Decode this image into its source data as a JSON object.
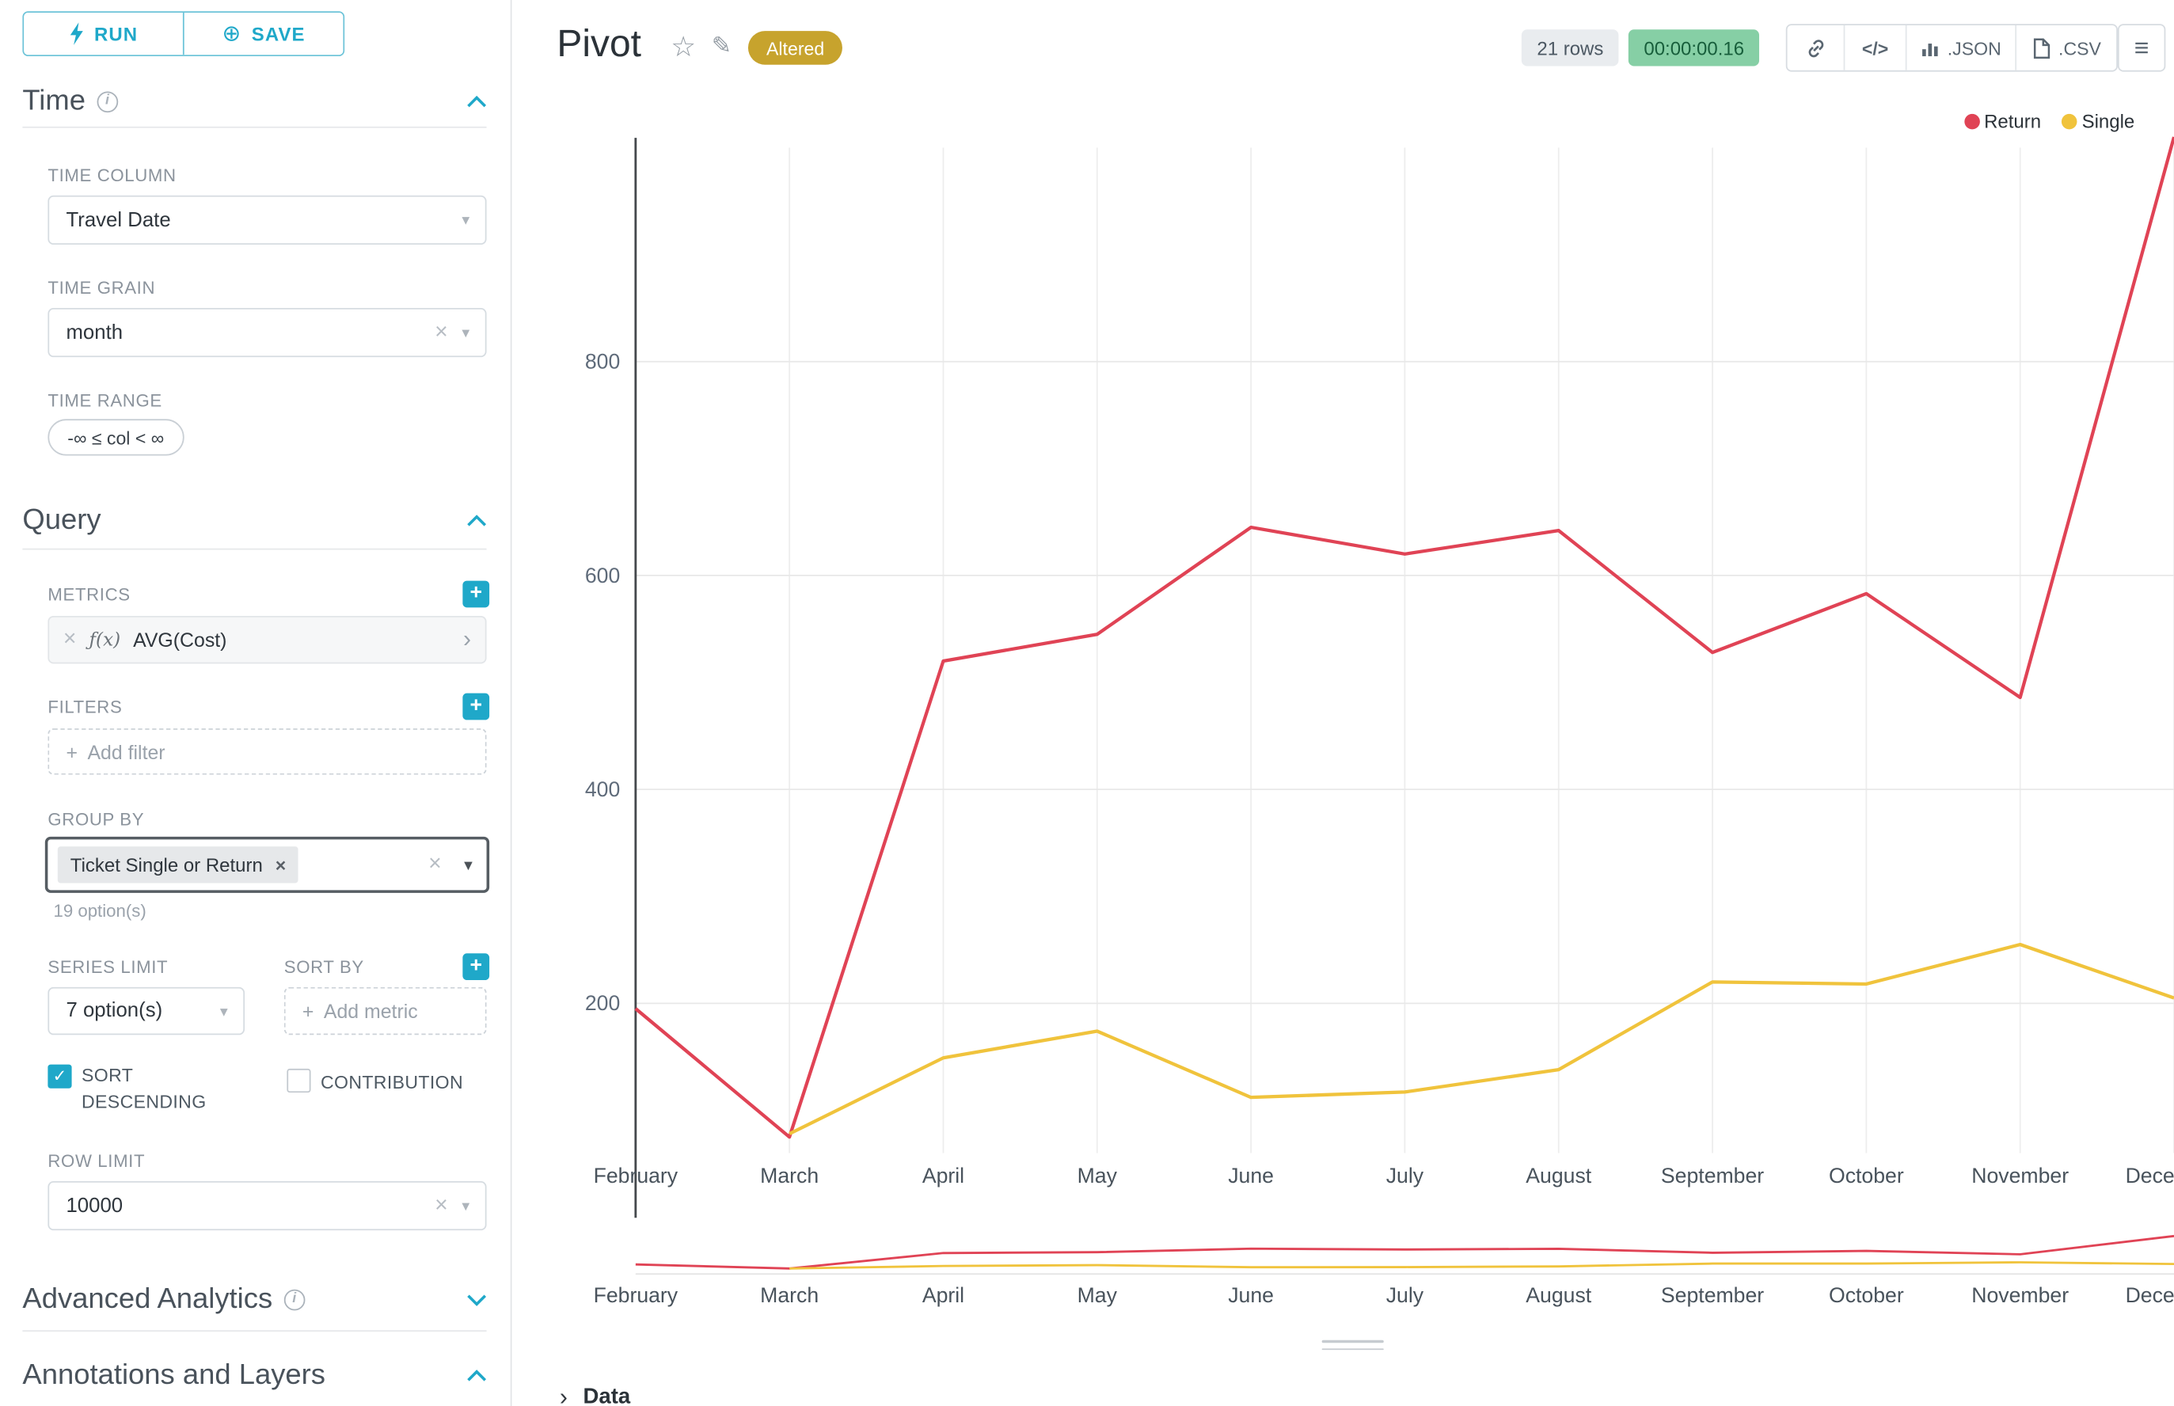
{
  "actions": {
    "run": "RUN",
    "save": "SAVE"
  },
  "panels": {
    "time": {
      "title": "Time",
      "time_column_label": "TIME COLUMN",
      "time_column_value": "Travel Date",
      "time_grain_label": "TIME GRAIN",
      "time_grain_value": "month",
      "time_range_label": "TIME RANGE",
      "time_range_value": "-∞ ≤ col < ∞"
    },
    "query": {
      "title": "Query",
      "metrics_label": "METRICS",
      "metric_fx": "ƒ(x)",
      "metric_value": "AVG(Cost)",
      "filters_label": "FILTERS",
      "add_filter_placeholder": "Add filter",
      "group_by_label": "GROUP BY",
      "group_by_tag": "Ticket Single or Return",
      "group_by_hint": "19 option(s)",
      "series_limit_label": "SERIES LIMIT",
      "series_limit_value": "7 option(s)",
      "sort_by_label": "SORT BY",
      "add_metric_placeholder": "Add metric",
      "sort_descending_label": "SORT DESCENDING",
      "sort_descending_checked": true,
      "contribution_label": "CONTRIBUTION",
      "contribution_checked": false,
      "row_limit_label": "ROW LIMIT",
      "row_limit_value": "10000"
    },
    "advanced": {
      "title": "Advanced Analytics"
    },
    "annotations": {
      "title": "Annotations and Layers"
    }
  },
  "header": {
    "title": "Pivot",
    "status_badge": "Altered",
    "row_count": "21 rows",
    "timer": "00:00:00.16",
    "json_label": ".JSON",
    "csv_label": ".CSV"
  },
  "footer": {
    "data_label": "Data"
  },
  "colors": {
    "accent": "#1fa8c9",
    "altered_badge": "#c7a32d",
    "timer_bg": "#86cfa5",
    "timer_text": "#175e3b",
    "return_series": "#e04355",
    "single_series": "#f0c33c"
  },
  "chart_data": {
    "type": "line",
    "title": "Pivot",
    "x": [
      "February",
      "March",
      "April",
      "May",
      "June",
      "July",
      "August",
      "September",
      "October",
      "November",
      "December"
    ],
    "series": [
      {
        "name": "Return",
        "color": "#e04355",
        "values": [
          195,
          75,
          520,
          545,
          645,
          620,
          642,
          528,
          583,
          486,
          1010
        ]
      },
      {
        "name": "Single",
        "color": "#f0c33c",
        "values": [
          null,
          78,
          149,
          174,
          112,
          117,
          138,
          220,
          218,
          255,
          205
        ]
      }
    ],
    "yticks": [
      200,
      400,
      600,
      800
    ],
    "ylim": [
      60,
      1000
    ],
    "grid": true,
    "legend_position": "top-right",
    "has_mini_range_chart": true
  }
}
